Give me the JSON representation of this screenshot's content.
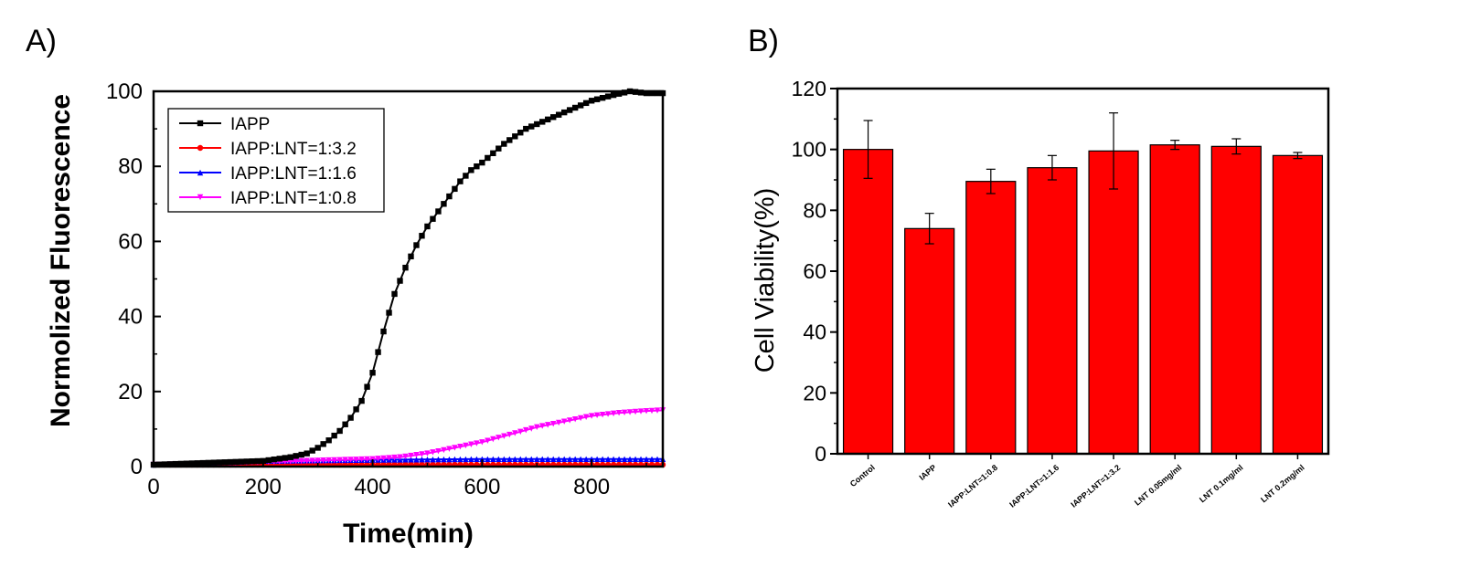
{
  "panels": {
    "a_label": "A)",
    "b_label": "B)"
  },
  "chart_data": [
    {
      "type": "line",
      "panel": "A)",
      "xlabel": "Time(min)",
      "ylabel": "Normolized Fluorescence",
      "xlim": [
        0,
        930
      ],
      "ylim": [
        0,
        100
      ],
      "xticks": [
        0,
        200,
        400,
        600,
        800
      ],
      "yticks": [
        0,
        20,
        40,
        60,
        80,
        100
      ],
      "legend_position": "top-left",
      "grid": false,
      "series": [
        {
          "name": "IAPP",
          "color": "#000000",
          "marker": "square",
          "x": [
            0,
            100,
            200,
            250,
            280,
            300,
            320,
            340,
            360,
            380,
            400,
            420,
            440,
            460,
            480,
            500,
            520,
            540,
            560,
            580,
            600,
            640,
            680,
            720,
            760,
            800,
            840,
            870,
            900,
            930
          ],
          "y": [
            0.5,
            1,
            1.5,
            2.5,
            3.5,
            5,
            7,
            9.5,
            13,
            17.5,
            25,
            36,
            46,
            53,
            59,
            64,
            68,
            72,
            76,
            79,
            81,
            86,
            90,
            92.5,
            95,
            97.5,
            99,
            100,
            99.5,
            99.5
          ]
        },
        {
          "name": "IAPP:LNT=1:3.2",
          "color": "#ff0000",
          "marker": "circle",
          "x": [
            0,
            200,
            400,
            600,
            800,
            930
          ],
          "y": [
            0.5,
            0.5,
            0.5,
            0.5,
            0.5,
            0.5
          ]
        },
        {
          "name": "IAPP:LNT=1:1.6",
          "color": "#0000ff",
          "marker": "triangle-up",
          "x": [
            0,
            200,
            400,
            600,
            800,
            930
          ],
          "y": [
            0.5,
            1.5,
            1.8,
            2,
            2,
            2
          ]
        },
        {
          "name": "IAPP:LNT=1:0.8",
          "color": "#ff00ff",
          "marker": "triangle-down",
          "x": [
            0,
            200,
            300,
            400,
            450,
            500,
            550,
            600,
            650,
            700,
            750,
            800,
            850,
            900,
            930
          ],
          "y": [
            0.5,
            1.2,
            1.6,
            2,
            2.5,
            3.5,
            5,
            6.5,
            8.5,
            10.5,
            12,
            13.5,
            14.3,
            14.8,
            15
          ]
        }
      ]
    },
    {
      "type": "bar",
      "panel": "B)",
      "xlabel": "",
      "ylabel": "Cell Viability(%)",
      "ylim": [
        0,
        120
      ],
      "yticks": [
        0,
        20,
        40,
        60,
        80,
        100,
        120
      ],
      "bar_color": "#ff0000",
      "grid": false,
      "categories": [
        "Control",
        "IAPP",
        "IAPP:LNT=1:0.8",
        "IAPP:LNT=1:1.6",
        "IAPP:LNT=1:3.2",
        "LNT 0.05mg/ml",
        "LNT 0.1mg/ml",
        "LNT 0.2mg/ml"
      ],
      "values": [
        100,
        74,
        89.5,
        94,
        99.5,
        101.5,
        101,
        98
      ],
      "errors": [
        9.5,
        5,
        4,
        4,
        12.5,
        1.5,
        2.5,
        1
      ]
    }
  ]
}
